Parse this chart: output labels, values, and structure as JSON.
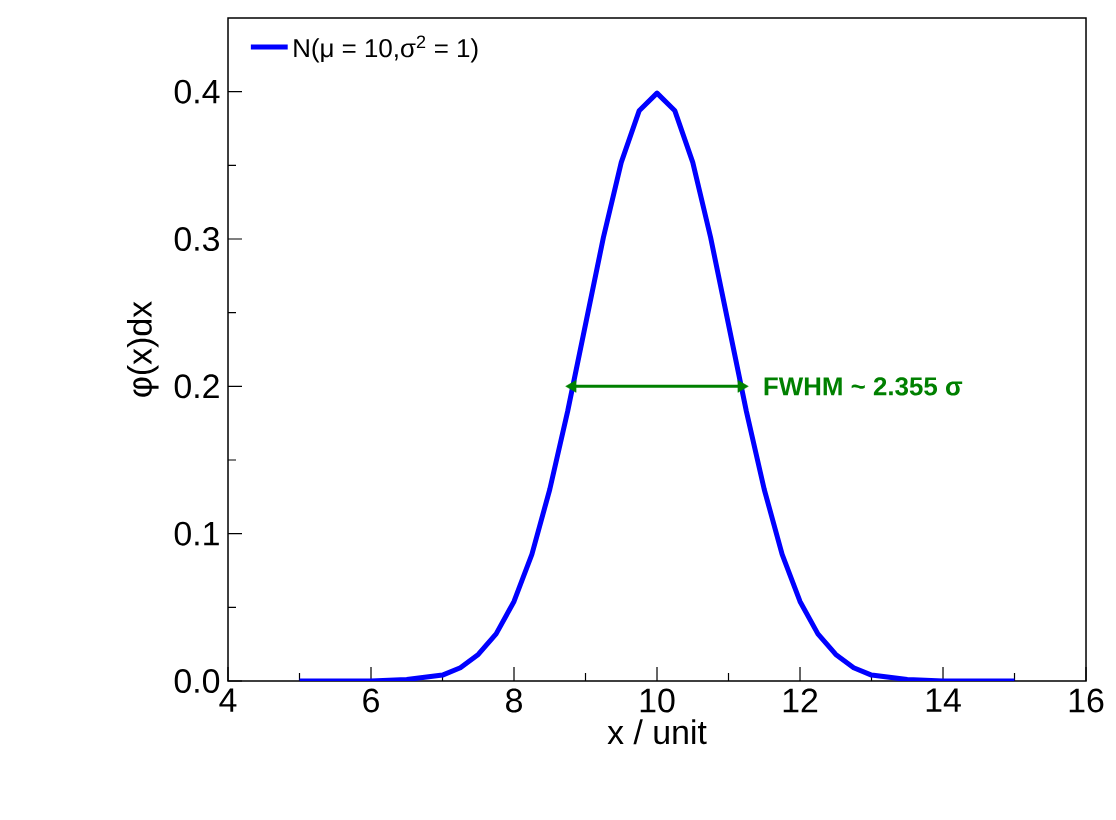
{
  "chart_data": {
    "type": "line",
    "xlabel": "x / unit",
    "ylabel": "φ(x)dx",
    "xlim": [
      4,
      16
    ],
    "ylim": [
      0,
      0.45
    ],
    "xticks": [
      4,
      6,
      8,
      10,
      12,
      14,
      16
    ],
    "yticks": [
      {
        "value": 0,
        "label": "0.0"
      },
      0.1,
      0.2,
      0.3,
      0.4
    ],
    "legend": "top left",
    "marker": "none",
    "line_style": "solid",
    "series": [
      {
        "name": "N(μ = 10,σ$^{2}$ = 1)",
        "color": "#0000ff",
        "x": [
          5,
          6,
          6.5,
          7,
          7.25,
          7.5,
          7.75,
          8,
          8.25,
          8.5,
          8.75,
          9,
          9.25,
          9.5,
          9.75,
          10,
          10.25,
          10.5,
          10.75,
          11,
          11.25,
          11.5,
          11.75,
          12,
          12.25,
          12.5,
          12.75,
          13,
          13.5,
          14,
          15
        ],
        "values": [
          0.0,
          0.0,
          0.001,
          0.004,
          0.009,
          0.018,
          0.032,
          0.054,
          0.086,
          0.13,
          0.183,
          0.242,
          0.301,
          0.352,
          0.387,
          0.399,
          0.387,
          0.352,
          0.301,
          0.242,
          0.183,
          0.13,
          0.086,
          0.054,
          0.032,
          0.018,
          0.009,
          0.004,
          0.001,
          0.0,
          0.0
        ]
      },
      {
        "type": "line",
        "color": "#008000",
        "marker": "triangle",
        "x": [
          8.82,
          11.18
        ],
        "values": [
          0.2,
          0.2
        ]
      }
    ],
    "annotations": [
      "**FWHM ~ 2.355 σ**"
    ]
  }
}
